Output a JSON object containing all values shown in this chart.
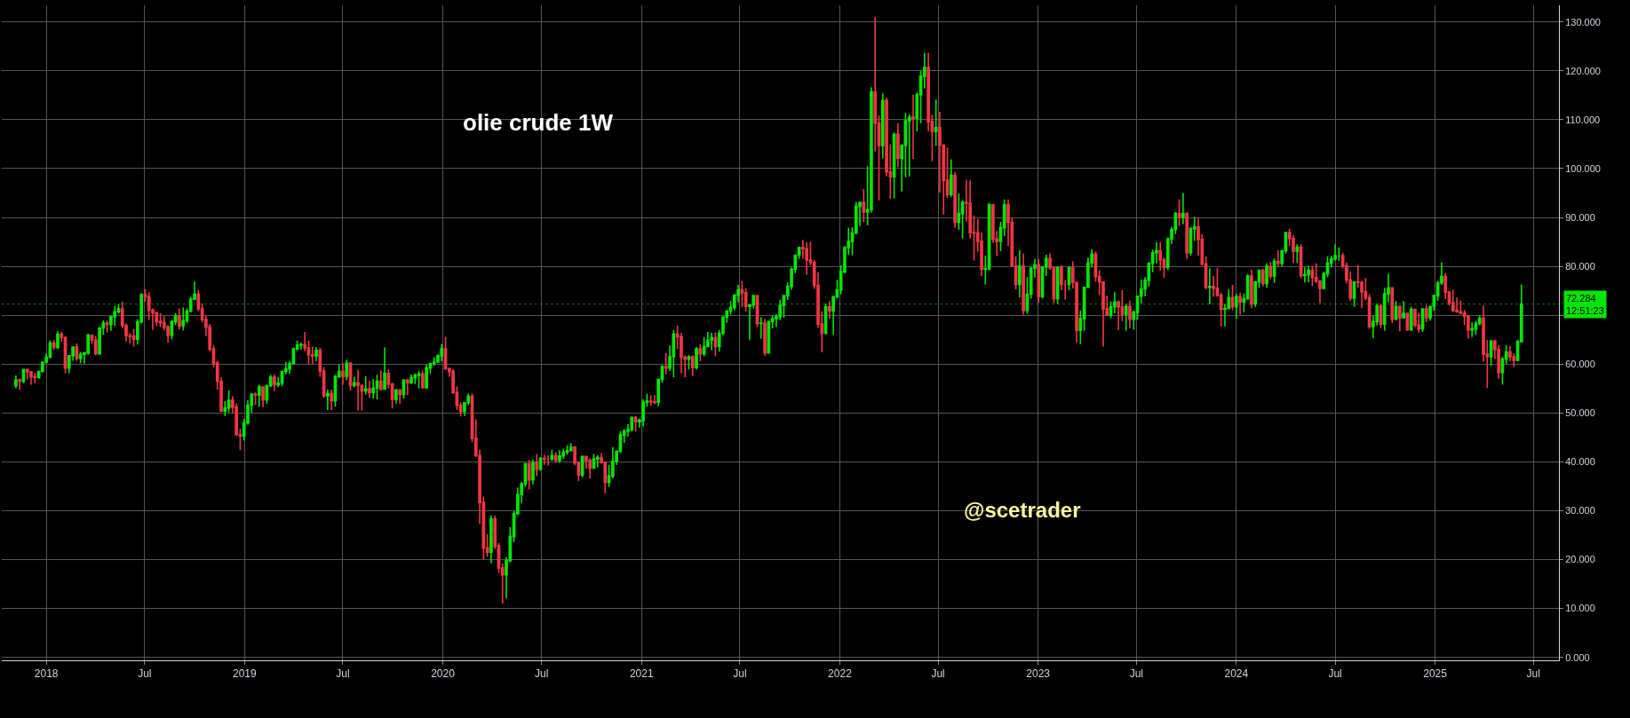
{
  "chart_data": {
    "type": "candlestick",
    "title": "olie crude 1W",
    "annotations": [
      "@scetrader"
    ],
    "x": [
      "2017-11-06",
      "2017-11-13",
      "2017-11-20",
      "2017-11-27",
      "2017-12-04",
      "2017-12-11",
      "2017-12-18",
      "2017-12-25",
      "2018-01-01",
      "2018-01-08",
      "2018-01-15",
      "2018-01-22",
      "2018-01-29",
      "2018-02-05",
      "2018-02-12",
      "2018-02-19",
      "2018-02-26",
      "2018-03-05",
      "2018-03-12",
      "2018-03-19",
      "2018-03-26",
      "2018-04-02",
      "2018-04-09",
      "2018-04-16",
      "2018-04-23",
      "2018-04-30",
      "2018-05-07",
      "2018-05-14",
      "2018-05-21",
      "2018-05-28",
      "2018-06-04",
      "2018-06-11",
      "2018-06-18",
      "2018-06-25",
      "2018-07-02",
      "2018-07-09",
      "2018-07-16",
      "2018-07-23",
      "2018-07-30",
      "2018-08-06",
      "2018-08-13",
      "2018-08-20",
      "2018-08-27",
      "2018-09-03",
      "2018-09-10",
      "2018-09-17",
      "2018-09-24",
      "2018-10-01",
      "2018-10-08",
      "2018-10-15",
      "2018-10-22",
      "2018-10-29",
      "2018-11-05",
      "2018-11-12",
      "2018-11-19",
      "2018-11-26",
      "2018-12-03",
      "2018-12-10",
      "2018-12-17",
      "2018-12-24",
      "2018-12-31",
      "2019-01-07",
      "2019-01-14",
      "2019-01-21",
      "2019-01-28",
      "2019-02-04",
      "2019-02-11",
      "2019-02-18",
      "2019-02-25",
      "2019-03-04",
      "2019-03-11",
      "2019-03-18",
      "2019-03-25",
      "2019-04-01",
      "2019-04-08",
      "2019-04-15",
      "2019-04-22",
      "2019-04-29",
      "2019-05-06",
      "2019-05-13",
      "2019-05-20",
      "2019-05-27",
      "2019-06-03",
      "2019-06-10",
      "2019-06-17",
      "2019-06-24",
      "2019-07-01",
      "2019-07-08",
      "2019-07-15",
      "2019-07-22",
      "2019-07-29",
      "2019-08-05",
      "2019-08-12",
      "2019-08-19",
      "2019-08-26",
      "2019-09-02",
      "2019-09-09",
      "2019-09-16",
      "2019-09-23",
      "2019-09-30",
      "2019-10-07",
      "2019-10-14",
      "2019-10-21",
      "2019-10-28",
      "2019-11-04",
      "2019-11-11",
      "2019-11-18",
      "2019-11-25",
      "2019-12-02",
      "2019-12-09",
      "2019-12-16",
      "2019-12-23",
      "2019-12-30",
      "2020-01-06",
      "2020-01-13",
      "2020-01-20",
      "2020-01-27",
      "2020-02-03",
      "2020-02-10",
      "2020-02-17",
      "2020-02-24",
      "2020-03-02",
      "2020-03-09",
      "2020-03-16",
      "2020-03-23",
      "2020-03-30",
      "2020-04-06",
      "2020-04-13",
      "2020-04-20",
      "2020-04-27",
      "2020-05-04",
      "2020-05-11",
      "2020-05-18",
      "2020-05-25",
      "2020-06-01",
      "2020-06-08",
      "2020-06-15",
      "2020-06-22",
      "2020-06-29",
      "2020-07-06",
      "2020-07-13",
      "2020-07-20",
      "2020-07-27",
      "2020-08-03",
      "2020-08-10",
      "2020-08-17",
      "2020-08-24",
      "2020-08-31",
      "2020-09-07",
      "2020-09-14",
      "2020-09-21",
      "2020-09-28",
      "2020-10-05",
      "2020-10-12",
      "2020-10-19",
      "2020-10-26",
      "2020-11-02",
      "2020-11-09",
      "2020-11-16",
      "2020-11-23",
      "2020-11-30",
      "2020-12-07",
      "2020-12-14",
      "2020-12-21",
      "2020-12-28",
      "2021-01-04",
      "2021-01-11",
      "2021-01-18",
      "2021-01-25",
      "2021-02-01",
      "2021-02-08",
      "2021-02-15",
      "2021-02-22",
      "2021-03-01",
      "2021-03-08",
      "2021-03-15",
      "2021-03-22",
      "2021-03-29",
      "2021-04-05",
      "2021-04-12",
      "2021-04-19",
      "2021-04-26",
      "2021-05-03",
      "2021-05-10",
      "2021-05-17",
      "2021-05-24",
      "2021-05-31",
      "2021-06-07",
      "2021-06-14",
      "2021-06-21",
      "2021-06-28",
      "2021-07-05",
      "2021-07-12",
      "2021-07-19",
      "2021-07-26",
      "2021-08-02",
      "2021-08-09",
      "2021-08-16",
      "2021-08-23",
      "2021-08-30",
      "2021-09-06",
      "2021-09-13",
      "2021-09-20",
      "2021-09-27",
      "2021-10-04",
      "2021-10-11",
      "2021-10-18",
      "2021-10-25",
      "2021-11-01",
      "2021-11-08",
      "2021-11-15",
      "2021-11-22",
      "2021-11-29",
      "2021-12-06",
      "2021-12-13",
      "2021-12-20",
      "2021-12-27",
      "2022-01-03",
      "2022-01-10",
      "2022-01-17",
      "2022-01-24",
      "2022-01-31",
      "2022-02-07",
      "2022-02-14",
      "2022-02-21",
      "2022-02-28",
      "2022-03-07",
      "2022-03-14",
      "2022-03-21",
      "2022-03-28",
      "2022-04-04",
      "2022-04-11",
      "2022-04-18",
      "2022-04-25",
      "2022-05-02",
      "2022-05-09",
      "2022-05-16",
      "2022-05-23",
      "2022-05-30",
      "2022-06-06",
      "2022-06-13",
      "2022-06-20",
      "2022-06-27",
      "2022-07-04",
      "2022-07-11",
      "2022-07-18",
      "2022-07-25",
      "2022-08-01",
      "2022-08-08",
      "2022-08-15",
      "2022-08-22",
      "2022-08-29",
      "2022-09-05",
      "2022-09-12",
      "2022-09-19",
      "2022-09-26",
      "2022-10-03",
      "2022-10-10",
      "2022-10-17",
      "2022-10-24",
      "2022-10-31",
      "2022-11-07",
      "2022-11-14",
      "2022-11-21",
      "2022-11-28",
      "2022-12-05",
      "2022-12-12",
      "2022-12-19",
      "2022-12-26",
      "2023-01-02",
      "2023-01-09",
      "2023-01-16",
      "2023-01-23",
      "2023-01-30",
      "2023-02-06",
      "2023-02-13",
      "2023-02-20",
      "2023-02-27",
      "2023-03-06",
      "2023-03-13",
      "2023-03-20",
      "2023-03-27",
      "2023-04-03",
      "2023-04-10",
      "2023-04-17",
      "2023-04-24",
      "2023-05-01",
      "2023-05-08",
      "2023-05-15",
      "2023-05-22",
      "2023-05-29",
      "2023-06-05",
      "2023-06-12",
      "2023-06-19",
      "2023-06-26",
      "2023-07-03",
      "2023-07-10",
      "2023-07-17",
      "2023-07-24",
      "2023-07-31",
      "2023-08-07",
      "2023-08-14",
      "2023-08-21",
      "2023-08-28",
      "2023-09-04",
      "2023-09-11",
      "2023-09-18",
      "2023-09-25",
      "2023-10-02",
      "2023-10-09",
      "2023-10-16",
      "2023-10-23",
      "2023-10-30",
      "2023-11-06",
      "2023-11-13",
      "2023-11-20",
      "2023-11-27",
      "2023-12-04",
      "2023-12-11",
      "2023-12-18",
      "2023-12-25",
      "2024-01-01",
      "2024-01-08",
      "2024-01-15",
      "2024-01-22",
      "2024-01-29",
      "2024-02-05",
      "2024-02-12",
      "2024-02-19",
      "2024-02-26",
      "2024-03-04",
      "2024-03-11",
      "2024-03-18",
      "2024-03-25",
      "2024-04-01",
      "2024-04-08",
      "2024-04-15",
      "2024-04-22",
      "2024-04-29",
      "2024-05-06",
      "2024-05-13",
      "2024-05-20",
      "2024-05-27",
      "2024-06-03",
      "2024-06-10",
      "2024-06-17",
      "2024-06-24",
      "2024-07-01",
      "2024-07-08",
      "2024-07-15",
      "2024-07-22",
      "2024-07-29",
      "2024-08-05",
      "2024-08-12",
      "2024-08-19",
      "2024-08-26",
      "2024-09-02",
      "2024-09-09",
      "2024-09-16",
      "2024-09-23",
      "2024-09-30",
      "2024-10-07",
      "2024-10-14",
      "2024-10-21",
      "2024-10-28",
      "2024-11-04",
      "2024-11-11",
      "2024-11-18",
      "2024-11-25",
      "2024-12-02",
      "2024-12-09",
      "2024-12-16",
      "2024-12-23",
      "2024-12-30",
      "2025-01-06",
      "2025-01-13",
      "2025-01-20",
      "2025-01-27",
      "2025-02-03",
      "2025-02-10",
      "2025-02-17",
      "2025-02-24",
      "2025-03-03",
      "2025-03-10",
      "2025-03-17",
      "2025-03-24",
      "2025-03-31",
      "2025-04-07",
      "2025-04-14",
      "2025-04-21",
      "2025-04-28",
      "2025-05-05",
      "2025-05-12",
      "2025-05-19",
      "2025-05-26",
      "2025-06-02",
      "2025-06-09"
    ],
    "ohlc": [
      [
        55.6,
        57.7,
        55.1,
        56.7
      ],
      [
        56.7,
        57.1,
        54.8,
        56.5
      ],
      [
        56.5,
        58.9,
        56.1,
        58.9
      ],
      [
        58.9,
        59.0,
        56.8,
        58.4
      ],
      [
        58.4,
        58.6,
        55.8,
        57.4
      ],
      [
        57.4,
        58.2,
        56.1,
        57.3
      ],
      [
        57.3,
        58.6,
        57.0,
        58.5
      ],
      [
        58.5,
        60.5,
        58.3,
        60.4
      ],
      [
        60.4,
        62.2,
        60.1,
        61.4
      ],
      [
        61.4,
        64.8,
        61.2,
        64.3
      ],
      [
        64.3,
        64.9,
        62.9,
        63.4
      ],
      [
        63.4,
        66.7,
        63.1,
        66.1
      ],
      [
        66.1,
        66.6,
        64.6,
        65.5
      ],
      [
        65.5,
        65.6,
        58.1,
        59.2
      ],
      [
        59.2,
        61.8,
        58.2,
        61.7
      ],
      [
        61.7,
        63.6,
        60.7,
        63.5
      ],
      [
        63.5,
        64.2,
        60.7,
        61.2
      ],
      [
        61.2,
        62.5,
        60.2,
        62.0
      ],
      [
        62.0,
        62.5,
        60.1,
        62.3
      ],
      [
        62.3,
        66.2,
        61.9,
        65.9
      ],
      [
        65.9,
        66.0,
        64.2,
        64.9
      ],
      [
        64.9,
        65.7,
        61.8,
        62.1
      ],
      [
        62.1,
        67.5,
        61.9,
        67.4
      ],
      [
        67.4,
        69.0,
        66.0,
        68.4
      ],
      [
        68.4,
        68.9,
        66.5,
        68.1
      ],
      [
        68.1,
        69.8,
        66.8,
        69.7
      ],
      [
        69.7,
        71.9,
        67.8,
        70.7
      ],
      [
        70.7,
        72.3,
        70.3,
        71.3
      ],
      [
        71.3,
        72.8,
        67.4,
        67.9
      ],
      [
        67.9,
        68.3,
        64.6,
        65.8
      ],
      [
        65.8,
        66.3,
        64.2,
        65.7
      ],
      [
        65.7,
        67.2,
        63.6,
        65.1
      ],
      [
        65.1,
        69.2,
        64.0,
        68.6
      ],
      [
        68.6,
        74.5,
        68.3,
        74.2
      ],
      [
        74.2,
        75.3,
        72.7,
        73.8
      ],
      [
        73.8,
        74.7,
        69.0,
        71.0
      ],
      [
        71.0,
        71.4,
        67.0,
        70.5
      ],
      [
        70.5,
        70.6,
        67.8,
        68.7
      ],
      [
        68.7,
        70.4,
        67.6,
        68.5
      ],
      [
        68.5,
        69.8,
        66.9,
        67.6
      ],
      [
        67.6,
        68.0,
        64.4,
        65.9
      ],
      [
        65.9,
        69.0,
        65.1,
        68.7
      ],
      [
        68.7,
        70.4,
        68.0,
        69.8
      ],
      [
        69.8,
        71.4,
        67.1,
        67.8
      ],
      [
        67.8,
        71.6,
        66.9,
        68.9
      ],
      [
        68.9,
        71.4,
        68.4,
        70.8
      ],
      [
        70.8,
        73.8,
        70.6,
        73.3
      ],
      [
        73.3,
        76.9,
        73.1,
        74.3
      ],
      [
        74.3,
        75.2,
        70.8,
        71.3
      ],
      [
        71.3,
        72.4,
        68.5,
        69.1
      ],
      [
        69.1,
        70.0,
        65.7,
        67.6
      ],
      [
        67.6,
        68.2,
        62.6,
        63.1
      ],
      [
        63.1,
        63.8,
        59.3,
        60.2
      ],
      [
        60.2,
        60.7,
        54.8,
        56.5
      ],
      [
        56.5,
        57.3,
        50.2,
        50.4
      ],
      [
        50.4,
        52.4,
        49.4,
        51.0
      ],
      [
        51.0,
        54.6,
        50.1,
        52.6
      ],
      [
        52.6,
        53.4,
        49.9,
        51.2
      ],
      [
        51.2,
        51.9,
        45.3,
        45.6
      ],
      [
        45.6,
        46.8,
        42.4,
        45.3
      ],
      [
        45.3,
        48.8,
        44.4,
        48.0
      ],
      [
        48.0,
        52.6,
        47.6,
        51.6
      ],
      [
        51.6,
        54.1,
        50.0,
        53.8
      ],
      [
        53.8,
        54.2,
        51.7,
        53.7
      ],
      [
        53.7,
        55.8,
        51.3,
        55.3
      ],
      [
        55.3,
        55.4,
        51.2,
        52.7
      ],
      [
        52.7,
        55.8,
        51.9,
        55.6
      ],
      [
        55.6,
        57.8,
        55.3,
        57.3
      ],
      [
        57.3,
        57.9,
        54.5,
        55.8
      ],
      [
        55.8,
        57.3,
        55.3,
        56.1
      ],
      [
        56.1,
        58.7,
        55.5,
        58.5
      ],
      [
        58.5,
        60.4,
        57.9,
        59.0
      ],
      [
        59.0,
        60.7,
        58.0,
        60.1
      ],
      [
        60.1,
        63.4,
        60.0,
        63.1
      ],
      [
        63.1,
        64.8,
        62.8,
        63.9
      ],
      [
        63.9,
        64.4,
        62.9,
        64.0
      ],
      [
        64.0,
        66.6,
        62.6,
        63.3
      ],
      [
        63.3,
        64.8,
        60.0,
        61.9
      ],
      [
        61.9,
        63.6,
        60.0,
        61.7
      ],
      [
        61.7,
        63.5,
        60.6,
        62.8
      ],
      [
        62.8,
        63.3,
        57.4,
        58.6
      ],
      [
        58.6,
        59.4,
        53.1,
        53.5
      ],
      [
        53.5,
        54.8,
        50.6,
        54.0
      ],
      [
        54.0,
        54.8,
        50.6,
        52.5
      ],
      [
        52.5,
        57.8,
        51.3,
        57.4
      ],
      [
        57.4,
        59.9,
        57.2,
        58.5
      ],
      [
        58.5,
        60.2,
        55.8,
        57.5
      ],
      [
        57.5,
        60.9,
        56.7,
        60.2
      ],
      [
        60.2,
        60.3,
        54.6,
        55.6
      ],
      [
        55.6,
        57.4,
        55.3,
        56.2
      ],
      [
        56.2,
        58.8,
        50.5,
        55.7
      ],
      [
        55.7,
        55.8,
        50.5,
        54.5
      ],
      [
        54.5,
        57.5,
        53.8,
        54.9
      ],
      [
        54.9,
        56.6,
        53.1,
        54.2
      ],
      [
        54.2,
        56.9,
        52.9,
        55.1
      ],
      [
        55.1,
        57.8,
        52.8,
        56.5
      ],
      [
        56.5,
        58.7,
        54.6,
        54.9
      ],
      [
        54.9,
        63.4,
        54.8,
        58.1
      ],
      [
        58.1,
        58.9,
        55.0,
        55.9
      ],
      [
        55.9,
        56.2,
        50.9,
        52.8
      ],
      [
        52.8,
        54.9,
        51.9,
        54.7
      ],
      [
        54.7,
        54.9,
        51.9,
        53.8
      ],
      [
        53.8,
        56.9,
        52.9,
        56.7
      ],
      [
        56.7,
        57.0,
        53.7,
        56.2
      ],
      [
        56.2,
        57.9,
        55.9,
        57.2
      ],
      [
        57.2,
        58.1,
        55.9,
        57.7
      ],
      [
        57.7,
        58.6,
        55.0,
        58.0
      ],
      [
        58.0,
        58.7,
        55.0,
        55.2
      ],
      [
        55.2,
        59.9,
        54.9,
        59.2
      ],
      [
        59.2,
        60.3,
        58.0,
        60.1
      ],
      [
        60.1,
        61.4,
        59.7,
        60.4
      ],
      [
        60.4,
        62.0,
        60.3,
        61.7
      ],
      [
        61.7,
        64.1,
        60.6,
        63.1
      ],
      [
        63.1,
        65.6,
        58.8,
        59.0
      ],
      [
        59.0,
        59.3,
        57.4,
        58.5
      ],
      [
        58.5,
        59.0,
        53.9,
        54.2
      ],
      [
        54.2,
        55.4,
        50.6,
        51.6
      ],
      [
        51.6,
        52.2,
        49.3,
        50.3
      ],
      [
        50.3,
        52.3,
        49.4,
        52.1
      ],
      [
        52.1,
        54.0,
        51.6,
        53.4
      ],
      [
        53.4,
        54.0,
        44.0,
        44.8
      ],
      [
        44.8,
        48.7,
        41.0,
        41.3
      ],
      [
        41.3,
        42.5,
        27.3,
        31.7
      ],
      [
        31.7,
        32.9,
        20.1,
        22.4
      ],
      [
        22.4,
        25.2,
        20.6,
        21.5
      ],
      [
        21.5,
        29.1,
        19.3,
        28.3
      ],
      [
        28.3,
        29.0,
        22.2,
        22.8
      ],
      [
        22.8,
        23.4,
        17.3,
        18.3
      ],
      [
        18.3,
        19.2,
        11.0,
        16.9
      ],
      [
        16.9,
        20.5,
        12.0,
        19.8
      ],
      [
        19.8,
        26.7,
        19.4,
        24.7
      ],
      [
        24.7,
        30.0,
        23.6,
        29.4
      ],
      [
        29.4,
        34.7,
        29.1,
        33.3
      ],
      [
        33.3,
        35.9,
        31.6,
        35.5
      ],
      [
        35.5,
        39.8,
        34.9,
        39.6
      ],
      [
        39.6,
        40.4,
        34.4,
        36.3
      ],
      [
        36.3,
        40.5,
        35.4,
        39.8
      ],
      [
        39.8,
        41.6,
        37.1,
        38.5
      ],
      [
        38.5,
        41.0,
        38.2,
        40.7
      ],
      [
        40.7,
        41.4,
        39.4,
        40.6
      ],
      [
        40.6,
        41.3,
        39.2,
        40.6
      ],
      [
        40.6,
        42.5,
        40.2,
        41.3
      ],
      [
        41.3,
        42.0,
        39.8,
        40.3
      ],
      [
        40.3,
        42.4,
        39.8,
        41.2
      ],
      [
        41.2,
        42.7,
        40.6,
        42.0
      ],
      [
        42.0,
        43.4,
        41.5,
        42.3
      ],
      [
        42.3,
        43.8,
        42.2,
        43.0
      ],
      [
        43.0,
        43.2,
        39.3,
        39.8
      ],
      [
        39.8,
        40.0,
        36.1,
        37.3
      ],
      [
        37.3,
        41.3,
        36.8,
        41.1
      ],
      [
        41.1,
        41.2,
        38.6,
        40.3
      ],
      [
        40.3,
        40.7,
        36.6,
        38.7
      ],
      [
        38.7,
        41.6,
        38.6,
        40.6
      ],
      [
        40.6,
        41.4,
        38.9,
        40.9
      ],
      [
        40.9,
        41.8,
        39.6,
        39.9
      ],
      [
        39.9,
        40.0,
        33.6,
        35.8
      ],
      [
        35.8,
        39.4,
        34.9,
        37.1
      ],
      [
        37.1,
        43.0,
        36.6,
        40.1
      ],
      [
        40.1,
        42.3,
        39.4,
        42.2
      ],
      [
        42.2,
        46.3,
        41.8,
        45.5
      ],
      [
        45.5,
        46.7,
        43.9,
        46.3
      ],
      [
        46.3,
        47.7,
        45.2,
        46.6
      ],
      [
        46.6,
        49.3,
        46.2,
        49.1
      ],
      [
        49.1,
        49.4,
        46.2,
        48.2
      ],
      [
        48.2,
        48.9,
        47.0,
        48.5
      ],
      [
        48.5,
        52.8,
        47.2,
        52.2
      ],
      [
        52.2,
        53.9,
        51.3,
        52.4
      ],
      [
        52.4,
        53.6,
        51.5,
        52.3
      ],
      [
        52.3,
        53.7,
        51.8,
        52.2
      ],
      [
        52.2,
        57.0,
        51.4,
        56.9
      ],
      [
        56.9,
        59.8,
        56.2,
        59.5
      ],
      [
        59.5,
        62.3,
        57.9,
        59.2
      ],
      [
        59.2,
        63.8,
        58.6,
        61.5
      ],
      [
        61.5,
        67.0,
        57.3,
        66.1
      ],
      [
        66.1,
        67.9,
        63.1,
        65.6
      ],
      [
        65.6,
        66.4,
        58.1,
        61.4
      ],
      [
        61.4,
        61.8,
        57.3,
        61.0
      ],
      [
        61.0,
        61.8,
        58.9,
        61.5
      ],
      [
        61.5,
        61.8,
        57.6,
        59.3
      ],
      [
        59.3,
        63.5,
        58.9,
        63.1
      ],
      [
        63.1,
        64.1,
        60.6,
        62.1
      ],
      [
        62.1,
        65.5,
        61.6,
        63.6
      ],
      [
        63.6,
        66.6,
        63.5,
        64.9
      ],
      [
        64.9,
        66.4,
        62.8,
        65.4
      ],
      [
        65.4,
        66.5,
        61.6,
        63.6
      ],
      [
        63.6,
        67.0,
        62.6,
        66.3
      ],
      [
        66.3,
        69.8,
        65.9,
        69.6
      ],
      [
        69.6,
        71.0,
        68.5,
        70.9
      ],
      [
        70.9,
        72.9,
        70.1,
        71.6
      ],
      [
        71.6,
        74.3,
        71.0,
        74.1
      ],
      [
        74.1,
        76.2,
        72.6,
        75.2
      ],
      [
        75.2,
        77.0,
        71.7,
        74.6
      ],
      [
        74.6,
        75.5,
        70.8,
        71.8
      ],
      [
        71.8,
        72.1,
        65.0,
        72.1
      ],
      [
        72.1,
        74.0,
        71.4,
        74.0
      ],
      [
        74.0,
        74.0,
        67.6,
        68.3
      ],
      [
        68.3,
        69.6,
        65.2,
        68.4
      ],
      [
        68.4,
        69.2,
        61.7,
        62.3
      ],
      [
        62.3,
        68.9,
        62.2,
        68.7
      ],
      [
        68.7,
        70.0,
        67.3,
        69.3
      ],
      [
        69.3,
        70.2,
        67.6,
        69.7
      ],
      [
        69.7,
        73.1,
        69.0,
        72.0
      ],
      [
        72.0,
        74.0,
        69.5,
        74.0
      ],
      [
        74.0,
        76.7,
        73.1,
        75.9
      ],
      [
        75.9,
        79.8,
        75.2,
        79.4
      ],
      [
        79.4,
        82.4,
        78.6,
        82.3
      ],
      [
        82.3,
        84.0,
        81.5,
        83.8
      ],
      [
        83.8,
        85.4,
        81.5,
        83.6
      ],
      [
        83.6,
        84.9,
        78.3,
        81.3
      ],
      [
        81.3,
        85.0,
        80.2,
        80.8
      ],
      [
        80.8,
        81.3,
        75.4,
        76.1
      ],
      [
        76.1,
        78.8,
        67.4,
        68.2
      ],
      [
        68.2,
        70.8,
        62.4,
        66.3
      ],
      [
        66.3,
        72.4,
        66.1,
        71.7
      ],
      [
        71.7,
        72.9,
        69.3,
        70.9
      ],
      [
        70.9,
        73.9,
        66.0,
        73.8
      ],
      [
        73.8,
        77.2,
        73.4,
        75.2
      ],
      [
        75.2,
        80.2,
        74.3,
        78.9
      ],
      [
        78.9,
        84.2,
        78.5,
        83.8
      ],
      [
        83.8,
        87.9,
        82.4,
        85.1
      ],
      [
        85.1,
        88.0,
        82.3,
        86.8
      ],
      [
        86.8,
        93.2,
        86.6,
        92.3
      ],
      [
        92.3,
        93.2,
        88.3,
        93.1
      ],
      [
        93.1,
        95.8,
        89.1,
        91.1
      ],
      [
        91.1,
        100.5,
        88.4,
        91.6
      ],
      [
        91.6,
        116.6,
        91.0,
        115.7
      ],
      [
        115.7,
        131.0,
        103.5,
        109.3
      ],
      [
        109.3,
        110.9,
        93.5,
        104.7
      ],
      [
        104.7,
        115.4,
        102.1,
        113.9
      ],
      [
        113.9,
        114.5,
        98.4,
        99.3
      ],
      [
        99.3,
        105.0,
        93.8,
        98.3
      ],
      [
        98.3,
        107.4,
        93.9,
        107.0
      ],
      [
        107.0,
        109.3,
        100.3,
        102.1
      ],
      [
        102.1,
        105.0,
        95.3,
        104.7
      ],
      [
        104.7,
        111.4,
        98.2,
        109.8
      ],
      [
        109.8,
        111.1,
        98.4,
        110.5
      ],
      [
        110.5,
        115.1,
        102.0,
        110.3
      ],
      [
        110.3,
        115.6,
        107.6,
        115.1
      ],
      [
        115.1,
        120.0,
        109.3,
        118.9
      ],
      [
        118.9,
        123.7,
        116.4,
        120.7
      ],
      [
        120.7,
        123.7,
        107.6,
        109.6
      ],
      [
        109.6,
        111.0,
        101.5,
        107.6
      ],
      [
        107.6,
        114.1,
        104.6,
        108.4
      ],
      [
        108.4,
        111.6,
        95.1,
        104.8
      ],
      [
        104.8,
        105.0,
        90.6,
        97.6
      ],
      [
        97.6,
        104.3,
        94.0,
        94.7
      ],
      [
        94.7,
        101.9,
        94.2,
        98.6
      ],
      [
        98.6,
        99.3,
        87.9,
        89.0
      ],
      [
        89.0,
        94.9,
        87.5,
        90.8
      ],
      [
        90.8,
        93.5,
        85.7,
        93.1
      ],
      [
        93.1,
        97.7,
        89.2,
        92.9
      ],
      [
        92.9,
        97.6,
        85.7,
        86.9
      ],
      [
        86.9,
        90.4,
        81.2,
        86.8
      ],
      [
        86.8,
        89.7,
        83.0,
        85.1
      ],
      [
        85.1,
        86.9,
        78.0,
        79.4
      ],
      [
        79.4,
        82.2,
        76.3,
        79.5
      ],
      [
        79.5,
        93.0,
        79.2,
        92.6
      ],
      [
        92.6,
        92.6,
        84.8,
        85.6
      ],
      [
        85.6,
        87.2,
        82.1,
        85.1
      ],
      [
        85.1,
        89.1,
        83.1,
        87.9
      ],
      [
        87.9,
        93.7,
        86.2,
        92.6
      ],
      [
        92.6,
        93.7,
        84.2,
        89.0
      ],
      [
        89.0,
        89.9,
        79.9,
        80.1
      ],
      [
        80.1,
        82.0,
        75.3,
        76.3
      ],
      [
        76.3,
        83.3,
        73.6,
        80.0
      ],
      [
        80.0,
        82.6,
        70.1,
        71.0
      ],
      [
        71.0,
        77.8,
        70.3,
        74.3
      ],
      [
        74.3,
        79.9,
        73.4,
        79.6
      ],
      [
        79.6,
        81.5,
        77.7,
        80.3
      ],
      [
        80.3,
        81.5,
        72.5,
        73.8
      ],
      [
        73.8,
        80.0,
        73.4,
        79.9
      ],
      [
        79.9,
        82.4,
        78.0,
        81.6
      ],
      [
        81.6,
        82.7,
        79.3,
        79.7
      ],
      [
        79.7,
        80.0,
        72.5,
        73.4
      ],
      [
        73.4,
        80.0,
        72.3,
        79.7
      ],
      [
        79.7,
        80.2,
        75.1,
        76.3
      ],
      [
        76.3,
        77.2,
        73.2,
        76.3
      ],
      [
        76.3,
        80.0,
        75.1,
        79.7
      ],
      [
        79.7,
        81.0,
        75.5,
        76.7
      ],
      [
        76.7,
        76.7,
        64.4,
        66.9
      ],
      [
        66.9,
        71.0,
        64.1,
        69.3
      ],
      [
        69.3,
        75.8,
        66.8,
        75.7
      ],
      [
        75.7,
        81.8,
        75.7,
        80.7
      ],
      [
        80.7,
        83.5,
        79.8,
        82.5
      ],
      [
        82.5,
        83.0,
        76.9,
        77.9
      ],
      [
        77.9,
        79.2,
        74.1,
        76.8
      ],
      [
        76.8,
        76.9,
        63.6,
        71.3
      ],
      [
        71.3,
        74.0,
        70.0,
        70.0
      ],
      [
        70.0,
        72.8,
        69.4,
        71.7
      ],
      [
        71.7,
        74.7,
        70.4,
        72.7
      ],
      [
        72.7,
        73.0,
        67.0,
        71.7
      ],
      [
        71.7,
        75.1,
        68.8,
        70.2
      ],
      [
        70.2,
        72.3,
        66.8,
        71.8
      ],
      [
        71.8,
        73.0,
        67.3,
        69.2
      ],
      [
        69.2,
        71.0,
        67.1,
        70.6
      ],
      [
        70.6,
        74.0,
        69.1,
        73.9
      ],
      [
        73.9,
        77.3,
        72.4,
        75.4
      ],
      [
        75.4,
        77.8,
        73.9,
        77.1
      ],
      [
        77.1,
        80.9,
        75.9,
        80.6
      ],
      [
        80.6,
        83.4,
        78.8,
        82.8
      ],
      [
        82.8,
        84.9,
        80.6,
        83.2
      ],
      [
        83.2,
        84.9,
        79.1,
        81.3
      ],
      [
        81.3,
        81.8,
        77.6,
        79.8
      ],
      [
        79.8,
        85.9,
        79.3,
        85.6
      ],
      [
        85.6,
        88.1,
        84.6,
        87.5
      ],
      [
        87.5,
        91.1,
        86.6,
        90.8
      ],
      [
        90.8,
        93.7,
        88.3,
        90.0
      ],
      [
        90.0,
        95.0,
        88.6,
        90.8
      ],
      [
        90.8,
        91.0,
        81.5,
        82.8
      ],
      [
        82.8,
        88.1,
        82.2,
        87.7
      ],
      [
        87.7,
        90.1,
        85.2,
        88.1
      ],
      [
        88.1,
        89.9,
        82.2,
        85.5
      ],
      [
        85.5,
        86.6,
        80.1,
        80.5
      ],
      [
        80.5,
        82.0,
        75.3,
        75.7
      ],
      [
        75.7,
        79.6,
        72.2,
        75.9
      ],
      [
        75.9,
        78.0,
        73.8,
        75.5
      ],
      [
        75.5,
        79.7,
        73.8,
        74.1
      ],
      [
        74.1,
        74.6,
        67.7,
        71.2
      ],
      [
        71.2,
        72.3,
        67.7,
        71.4
      ],
      [
        71.4,
        75.3,
        71.2,
        73.6
      ],
      [
        73.6,
        76.2,
        71.0,
        71.7
      ],
      [
        71.7,
        74.4,
        69.3,
        73.8
      ],
      [
        73.8,
        74.6,
        70.1,
        72.7
      ],
      [
        72.7,
        74.5,
        70.6,
        73.4
      ],
      [
        73.4,
        78.4,
        73.1,
        78.0
      ],
      [
        78.0,
        79.3,
        71.4,
        72.3
      ],
      [
        72.3,
        77.0,
        71.7,
        76.8
      ],
      [
        76.8,
        79.3,
        75.6,
        79.2
      ],
      [
        79.2,
        79.5,
        75.9,
        76.5
      ],
      [
        76.5,
        80.6,
        75.6,
        80.0
      ],
      [
        80.0,
        80.9,
        77.4,
        78.0
      ],
      [
        78.0,
        81.6,
        76.6,
        81.0
      ],
      [
        81.0,
        83.3,
        79.9,
        80.6
      ],
      [
        80.6,
        83.3,
        80.0,
        83.2
      ],
      [
        83.2,
        87.0,
        82.6,
        86.9
      ],
      [
        86.9,
        87.7,
        84.2,
        85.7
      ],
      [
        85.7,
        86.4,
        80.7,
        83.1
      ],
      [
        83.1,
        84.5,
        80.7,
        83.9
      ],
      [
        83.9,
        84.5,
        77.6,
        78.1
      ],
      [
        78.1,
        79.8,
        76.7,
        78.3
      ],
      [
        78.3,
        80.1,
        76.7,
        79.2
      ],
      [
        79.2,
        80.1,
        76.0,
        77.7
      ],
      [
        77.7,
        80.6,
        76.6,
        77.0
      ],
      [
        77.0,
        77.1,
        72.5,
        75.5
      ],
      [
        75.5,
        78.9,
        75.3,
        78.5
      ],
      [
        78.5,
        82.0,
        77.8,
        80.7
      ],
      [
        80.7,
        82.1,
        79.8,
        81.5
      ],
      [
        81.5,
        84.5,
        81.2,
        82.2
      ],
      [
        82.2,
        83.9,
        81.1,
        82.2
      ],
      [
        82.2,
        82.8,
        79.6,
        80.1
      ],
      [
        80.1,
        80.8,
        76.5,
        77.2
      ],
      [
        77.2,
        78.9,
        72.9,
        73.5
      ],
      [
        73.5,
        76.9,
        71.7,
        76.8
      ],
      [
        76.8,
        80.2,
        75.6,
        76.7
      ],
      [
        76.7,
        77.0,
        71.5,
        74.8
      ],
      [
        74.8,
        77.6,
        73.1,
        73.6
      ],
      [
        73.6,
        74.3,
        67.2,
        67.7
      ],
      [
        67.7,
        69.9,
        65.3,
        68.7
      ],
      [
        68.7,
        72.4,
        67.9,
        71.9
      ],
      [
        71.9,
        72.4,
        67.4,
        68.2
      ],
      [
        68.2,
        75.6,
        66.8,
        74.4
      ],
      [
        74.4,
        78.5,
        72.6,
        75.6
      ],
      [
        75.6,
        75.7,
        68.4,
        69.2
      ],
      [
        69.2,
        72.9,
        69.0,
        71.8
      ],
      [
        71.8,
        72.0,
        66.7,
        69.5
      ],
      [
        69.5,
        72.9,
        69.3,
        70.4
      ],
      [
        70.4,
        70.4,
        66.8,
        67.0
      ],
      [
        67.0,
        71.7,
        66.8,
        71.2
      ],
      [
        71.2,
        71.3,
        67.5,
        68.0
      ],
      [
        68.0,
        70.5,
        66.4,
        67.2
      ],
      [
        67.2,
        71.4,
        66.6,
        71.3
      ],
      [
        71.3,
        72.1,
        68.6,
        69.5
      ],
      [
        69.5,
        71.9,
        68.9,
        71.8
      ],
      [
        71.8,
        74.2,
        70.9,
        74.0
      ],
      [
        74.0,
        77.0,
        73.0,
        76.6
      ],
      [
        76.6,
        80.8,
        76.2,
        77.9
      ],
      [
        77.9,
        78.6,
        73.3,
        74.7
      ],
      [
        74.7,
        75.0,
        72.0,
        72.5
      ],
      [
        72.5,
        75.2,
        70.6,
        71.0
      ],
      [
        71.0,
        73.6,
        70.5,
        70.7
      ],
      [
        70.7,
        73.0,
        70.2,
        70.4
      ],
      [
        70.4,
        71.1,
        68.0,
        69.8
      ],
      [
        69.8,
        70.0,
        65.2,
        67.0
      ],
      [
        67.0,
        68.6,
        65.6,
        67.2
      ],
      [
        67.2,
        68.8,
        66.0,
        68.3
      ],
      [
        68.3,
        69.9,
        67.9,
        69.4
      ],
      [
        69.4,
        72.0,
        60.5,
        62.0
      ],
      [
        62.0,
        64.9,
        55.1,
        61.5
      ],
      [
        61.5,
        64.9,
        59.6,
        64.7
      ],
      [
        64.7,
        65.0,
        61.0,
        63.0
      ],
      [
        63.0,
        63.9,
        57.0,
        58.3
      ],
      [
        58.3,
        61.5,
        55.8,
        61.0
      ],
      [
        61.0,
        63.9,
        60.0,
        62.5
      ],
      [
        62.5,
        63.7,
        60.6,
        61.5
      ],
      [
        61.5,
        62.2,
        59.4,
        60.8
      ],
      [
        60.8,
        65.0,
        60.6,
        64.6
      ],
      [
        64.6,
        76.3,
        64.4,
        72.284
      ]
    ],
    "xlim": [
      "2017-10-11",
      "2025-08-17"
    ],
    "xticks": [
      {
        "value": "2018-01-01",
        "label": "2018"
      },
      {
        "value": "2018-07-01",
        "label": "Jul"
      },
      {
        "value": "2019-01-01",
        "label": "2019"
      },
      {
        "value": "2019-07-01",
        "label": "Jul"
      },
      {
        "value": "2020-01-01",
        "label": "2020"
      },
      {
        "value": "2020-07-01",
        "label": "Jul"
      },
      {
        "value": "2021-01-01",
        "label": "2021"
      },
      {
        "value": "2021-07-01",
        "label": "Jul"
      },
      {
        "value": "2022-01-01",
        "label": "2022"
      },
      {
        "value": "2022-07-01",
        "label": "Jul"
      },
      {
        "value": "2023-01-01",
        "label": "2023"
      },
      {
        "value": "2023-07-01",
        "label": "Jul"
      },
      {
        "value": "2024-01-01",
        "label": "2024"
      },
      {
        "value": "2024-07-01",
        "label": "Jul"
      },
      {
        "value": "2025-01-01",
        "label": "2025"
      },
      {
        "value": "2025-07-01",
        "label": "Jul"
      }
    ],
    "ylim": [
      -0.6,
      133.4
    ],
    "yticks": [
      {
        "value": 0,
        "label": "0.000"
      },
      {
        "value": 10,
        "label": "10.000"
      },
      {
        "value": 20,
        "label": "20.000"
      },
      {
        "value": 30,
        "label": "30.000"
      },
      {
        "value": 40,
        "label": "40.000"
      },
      {
        "value": 50,
        "label": "50.000"
      },
      {
        "value": 60,
        "label": "60.000"
      },
      {
        "value": 70,
        "label": null
      },
      {
        "value": 80,
        "label": "80.000"
      },
      {
        "value": 90,
        "label": "90.000"
      },
      {
        "value": 100,
        "label": "100.000"
      },
      {
        "value": 110,
        "label": "110.000"
      },
      {
        "value": 120,
        "label": "120.000"
      },
      {
        "value": 130,
        "label": "130.000"
      }
    ],
    "ref_lines": [
      {
        "axis": "y",
        "value": 72.284,
        "label": "72.284\n12:51:23",
        "color": "#00e600",
        "line_style": "dotted"
      }
    ],
    "grid": true
  }
}
